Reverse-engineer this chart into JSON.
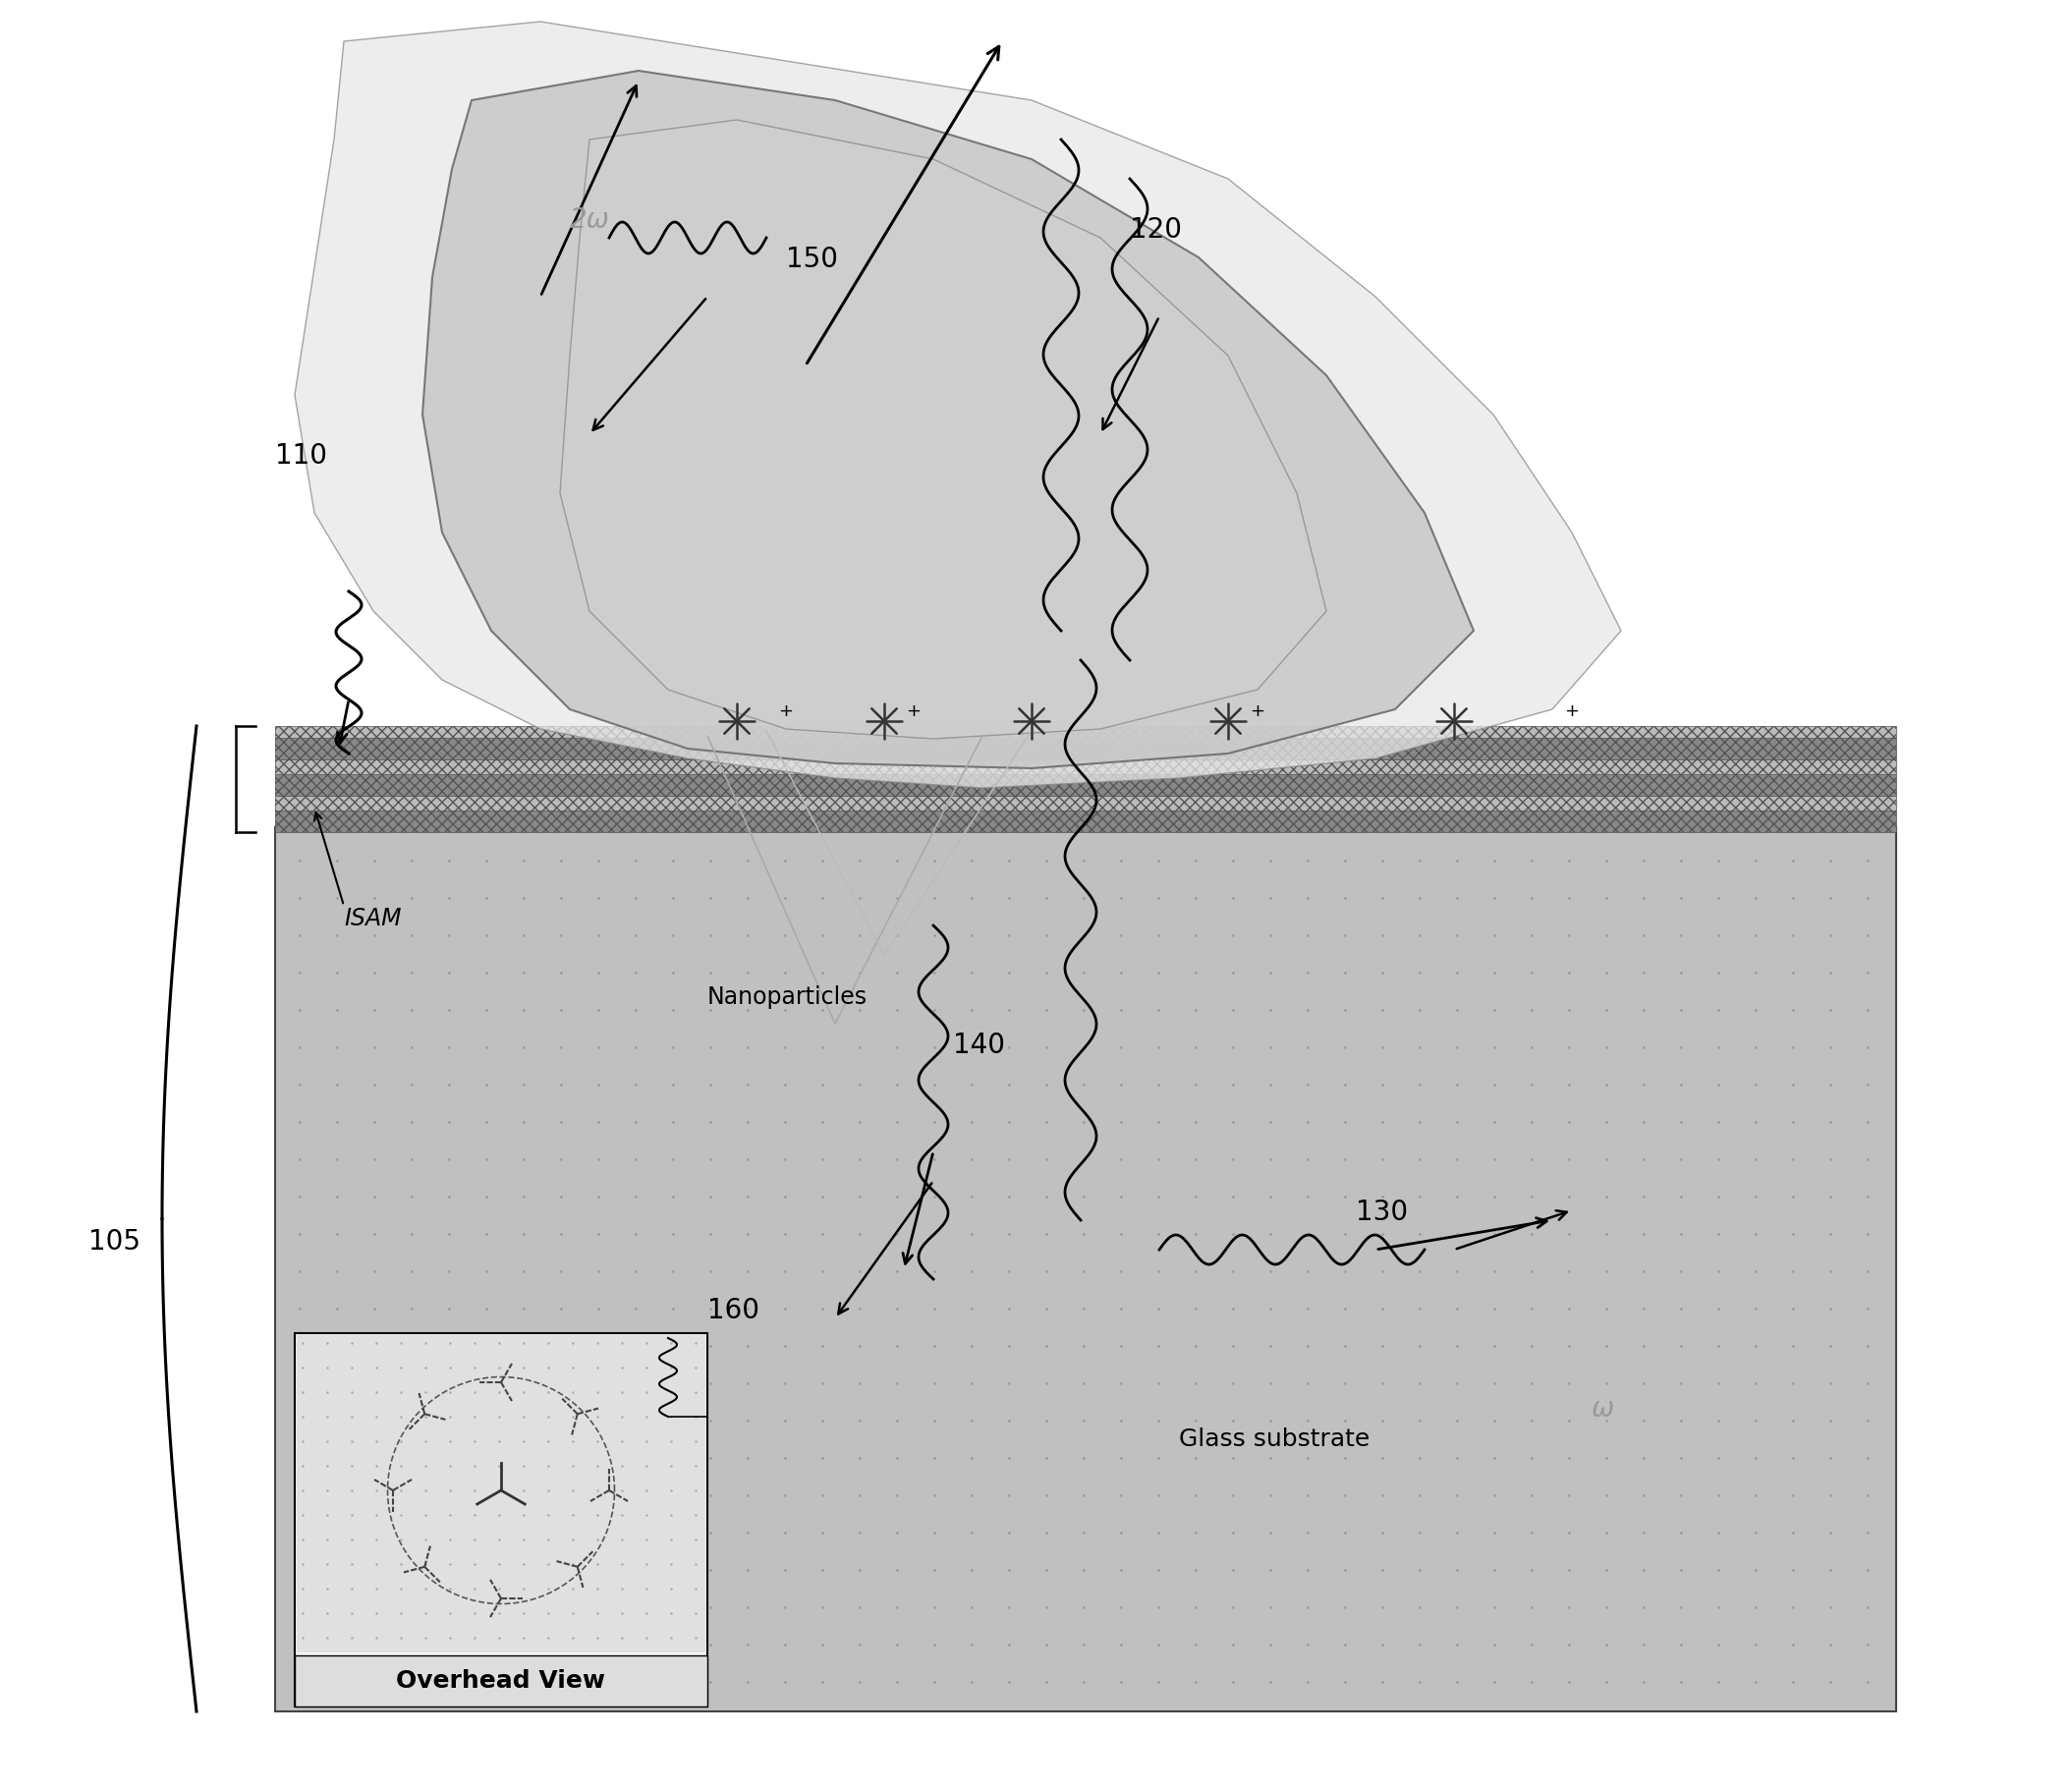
{
  "bg_color": "#ffffff",
  "substrate_color": "#c0c0c0",
  "substrate_dot_color": "#aaaaaa",
  "film_layer_colors": [
    "#999999",
    "#bbbbbb",
    "#999999",
    "#bbbbbb",
    "#999999",
    "#bbbbbb"
  ],
  "blob_main_color": "#c8c8c8",
  "blob_inner_color": "#d8d8d8",
  "blob_light_color": "#e8e8e8",
  "label_110": "110",
  "label_120": "120",
  "label_130": "130",
  "label_140": "140",
  "label_150": "150",
  "label_160": "160",
  "label_105": "105",
  "label_isam": "ISAM",
  "label_nano": "Nanoparticles",
  "label_glass": "Glass substrate",
  "label_overhead": "Overhead View",
  "label_2omega": "2ω",
  "label_omega": "ω",
  "font_size_number": 20,
  "font_size_text": 17,
  "font_size_greek": 18
}
